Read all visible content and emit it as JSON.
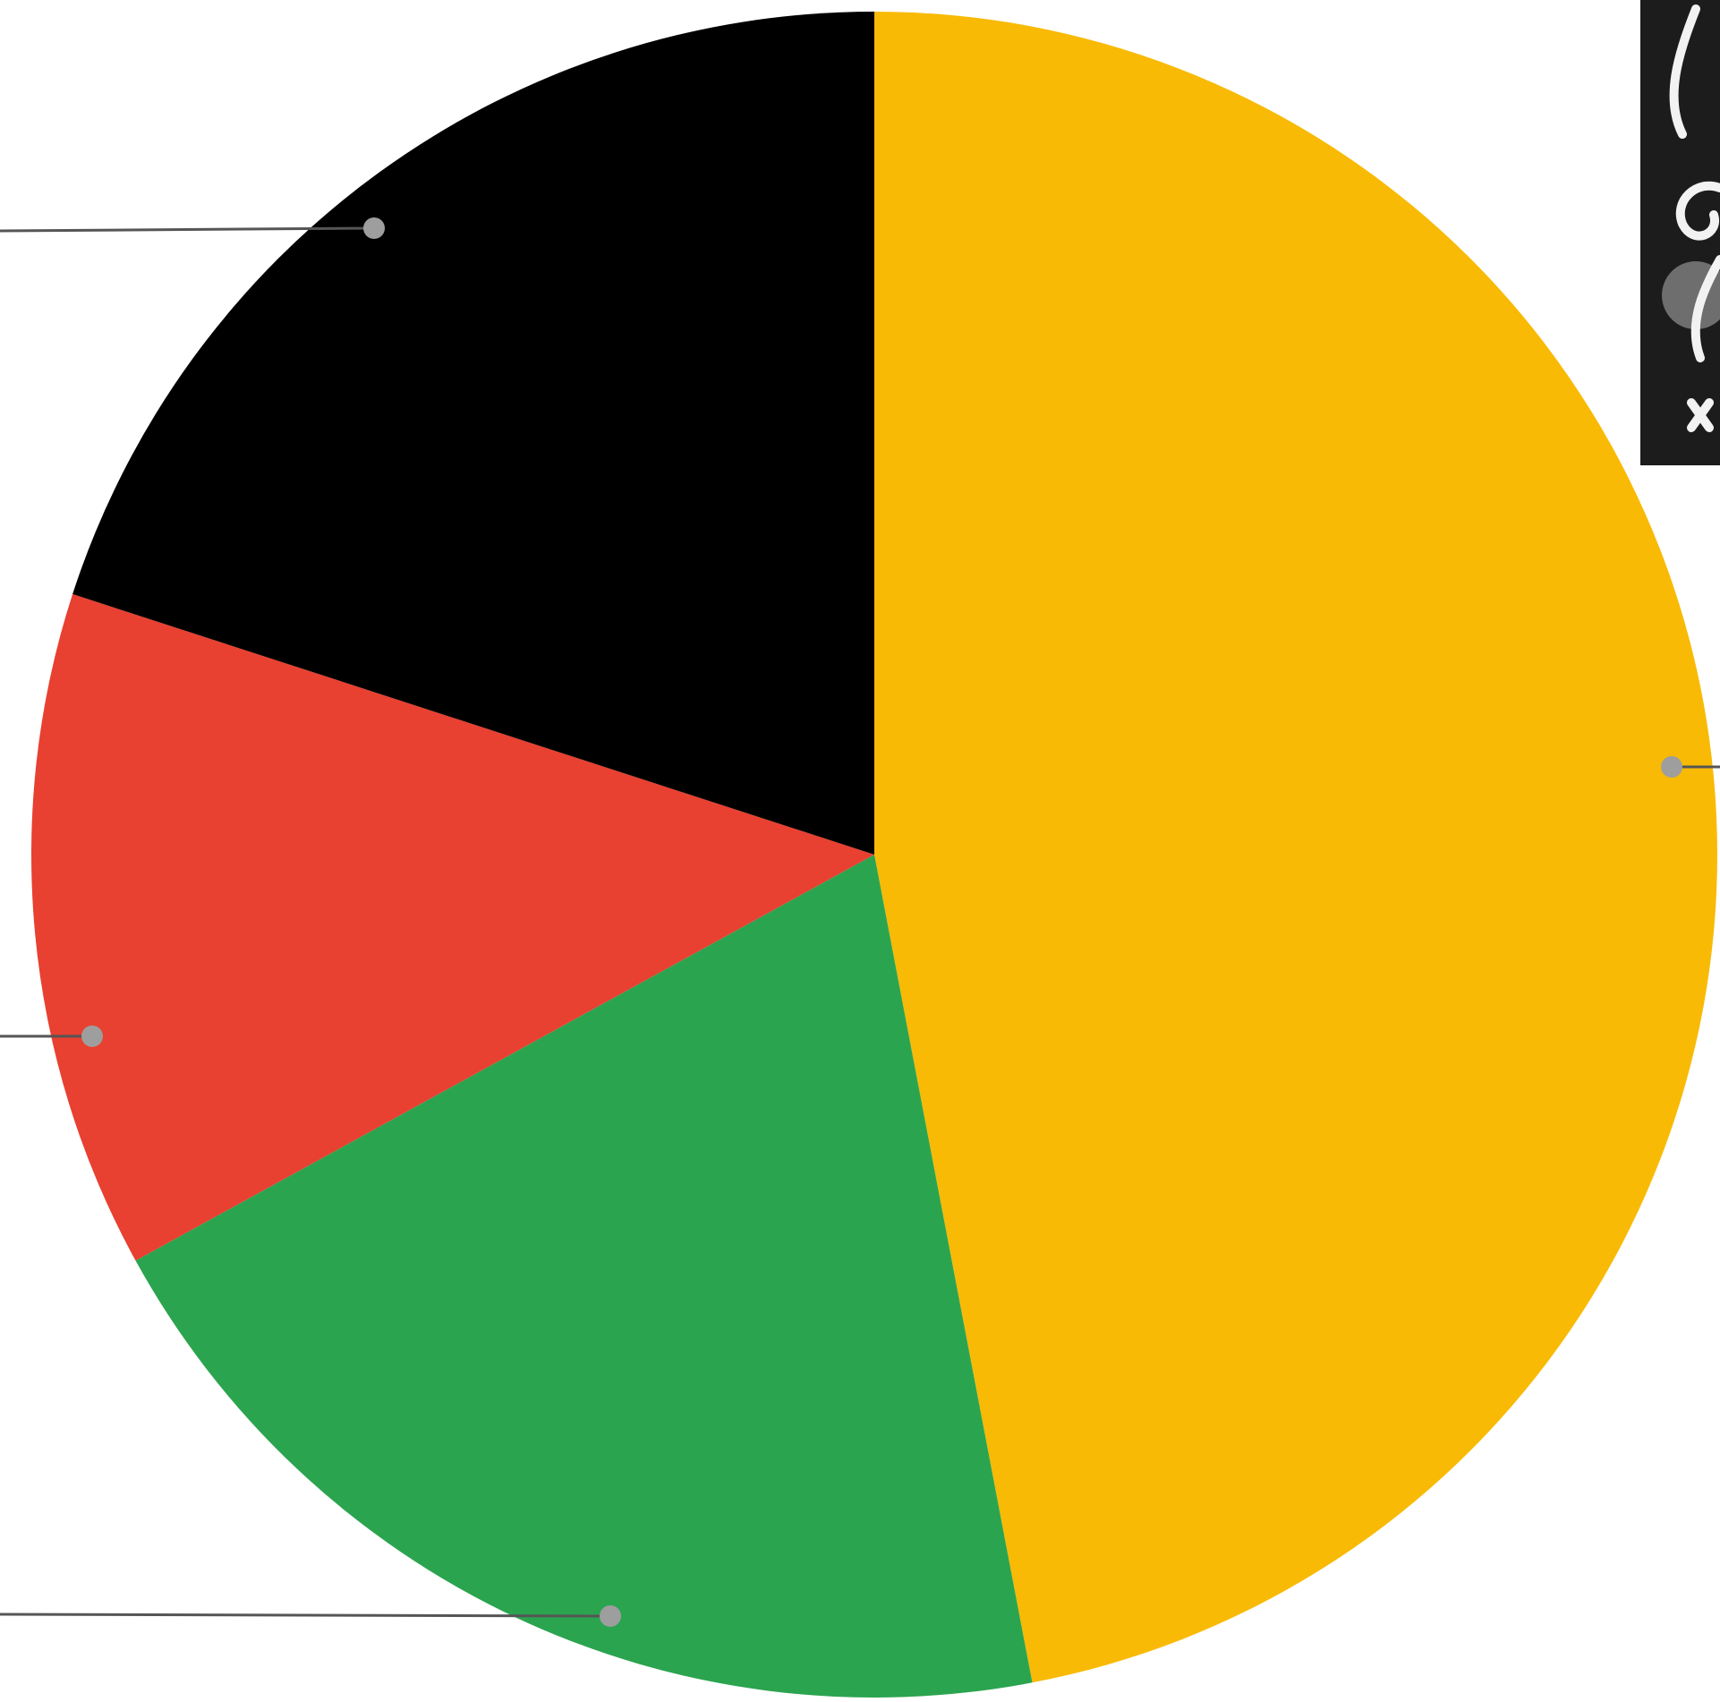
{
  "chart_data": {
    "type": "pie",
    "title": "",
    "start_angle_deg": 0,
    "direction": "clockwise",
    "legend": "none",
    "slices": [
      {
        "value": 47.0,
        "color": "#F8BA05"
      },
      {
        "value": 20.0,
        "color": "#2BA44F"
      },
      {
        "value": 13.0,
        "color": "#E84031"
      },
      {
        "value": 20.0,
        "color": "#000000"
      }
    ],
    "leader_color": "#555555",
    "leader_dot_color": "#9e9e9e",
    "photo_thumbnail": {
      "icon": "photo-thumbnail-icon",
      "tone": "grayscale"
    }
  }
}
